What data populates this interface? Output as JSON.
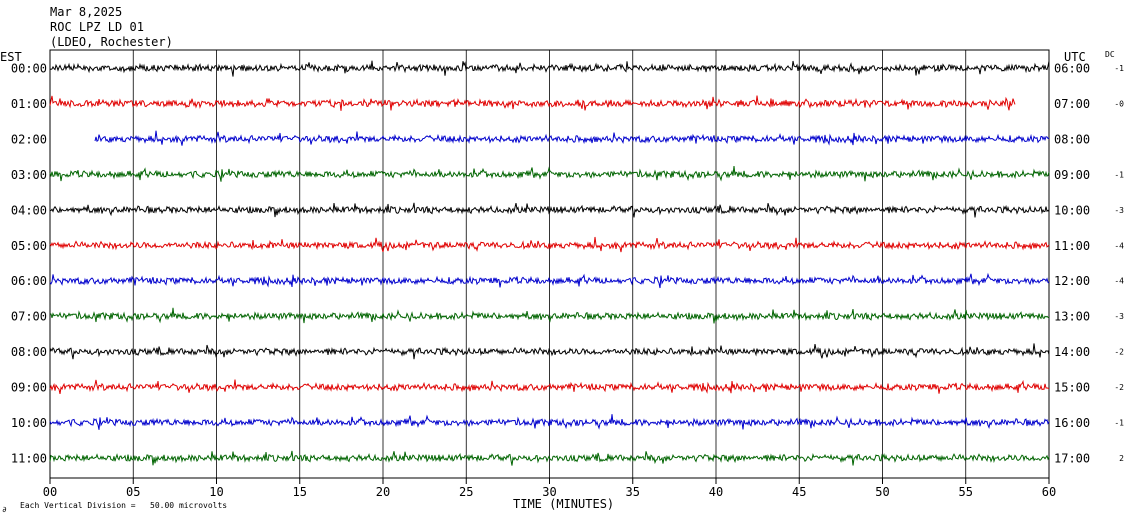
{
  "header": {
    "date": "Mar 8,2025",
    "station": "ROC LPZ LD 01",
    "network": "(LDEO, Rochester)"
  },
  "left_zone": "EST",
  "right_zone": "UTC",
  "dc_label": "DC",
  "footer": {
    "small_mark": "∂",
    "division_note": "Each Vertical Division =   50.00 microvolts"
  },
  "chart_data": {
    "type": "line",
    "title": "",
    "xlabel": "TIME (MINUTES)",
    "ylabel": "",
    "xlim": [
      0,
      60
    ],
    "x_ticks": [
      0,
      5,
      10,
      15,
      20,
      25,
      30,
      35,
      40,
      45,
      50,
      55,
      60
    ],
    "x_tick_labels": [
      "00",
      "05",
      "10",
      "15",
      "20",
      "25",
      "30",
      "35",
      "40",
      "45",
      "50",
      "55",
      "60"
    ],
    "grid": true,
    "trace_colors": [
      "#000000",
      "#e00000",
      "#0000cc",
      "#006400"
    ],
    "rows": [
      {
        "est": "00:00",
        "utc": "06:00",
        "dc": "-1",
        "color": "#000000",
        "start": 0,
        "end": 60
      },
      {
        "est": "01:00",
        "utc": "07:00",
        "dc": "-0",
        "color": "#e00000",
        "start": 0,
        "end": 58
      },
      {
        "est": "02:00",
        "utc": "08:00",
        "dc": "",
        "color": "#0000cc",
        "start": 2.7,
        "end": 60
      },
      {
        "est": "03:00",
        "utc": "09:00",
        "dc": "-1",
        "color": "#006400",
        "start": 0,
        "end": 60
      },
      {
        "est": "04:00",
        "utc": "10:00",
        "dc": "-3",
        "color": "#000000",
        "start": 0,
        "end": 60
      },
      {
        "est": "05:00",
        "utc": "11:00",
        "dc": "-4",
        "color": "#e00000",
        "start": 0,
        "end": 60
      },
      {
        "est": "06:00",
        "utc": "12:00",
        "dc": "-4",
        "color": "#0000cc",
        "start": 0,
        "end": 60
      },
      {
        "est": "07:00",
        "utc": "13:00",
        "dc": "-3",
        "color": "#006400",
        "start": 0,
        "end": 60
      },
      {
        "est": "08:00",
        "utc": "14:00",
        "dc": "-2",
        "color": "#000000",
        "start": 0,
        "end": 60
      },
      {
        "est": "09:00",
        "utc": "15:00",
        "dc": "-2",
        "color": "#e00000",
        "start": 0,
        "end": 60
      },
      {
        "est": "10:00",
        "utc": "16:00",
        "dc": "-1",
        "color": "#0000cc",
        "start": 0,
        "end": 60
      },
      {
        "est": "11:00",
        "utc": "17:00",
        "dc": "2",
        "color": "#006400",
        "start": 0,
        "end": 60
      }
    ]
  }
}
